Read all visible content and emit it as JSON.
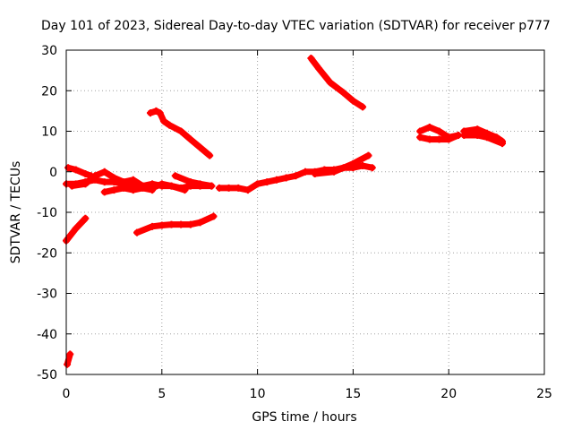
{
  "chart_data": {
    "type": "scatter",
    "title": "Day 101 of 2023, Sidereal Day-to-day VTEC variation (SDTVAR) for receiver p777",
    "xlabel": "GPS time / hours",
    "ylabel": "SDTVAR / TECUs",
    "xlim": [
      0,
      25
    ],
    "ylim": [
      -50,
      30
    ],
    "xticks": [
      "0",
      "5",
      "10",
      "15",
      "20",
      "25"
    ],
    "yticks": [
      "30",
      "20",
      "10",
      "0",
      "-10",
      "-20",
      "-30",
      "-40",
      "-50"
    ],
    "grid": true,
    "marker_color": "#ff0000",
    "series": [
      {
        "x": [
          0.0,
          0.5,
          1.0
        ],
        "y": [
          -17,
          -14,
          -11.5
        ]
      },
      {
        "x": [
          0.05,
          0.2
        ],
        "y": [
          -47.5,
          -45
        ]
      },
      {
        "x": [
          0.1,
          0.5,
          1.0,
          1.3
        ],
        "y": [
          1,
          0.5,
          -0.5,
          -1
        ]
      },
      {
        "x": [
          0.0,
          0.5,
          1.0,
          1.5,
          2.0,
          2.5,
          3.0,
          3.5,
          4.0,
          4.5,
          5.0,
          5.5,
          6.0,
          6.5,
          7.0,
          7.6
        ],
        "y": [
          -3,
          -3,
          -2.5,
          -2,
          -2.5,
          -2.5,
          -3,
          -3,
          -3.5,
          -3,
          -3.5,
          -3.5,
          -4,
          -3.5,
          -3.5,
          -3.5
        ]
      },
      {
        "x": [
          0.3,
          1.0,
          1.5,
          2.0,
          2.5,
          3.0,
          3.5,
          4.0,
          4.5,
          5.0,
          5.5,
          6.2
        ],
        "y": [
          -3.5,
          -3,
          -1,
          0,
          -1.5,
          -2.5,
          -2,
          -3.5,
          -4,
          -3,
          -3.5,
          -4.5
        ]
      },
      {
        "x": [
          2.0,
          2.5,
          3.0,
          3.5,
          4.0,
          4.5
        ],
        "y": [
          -5,
          -4.5,
          -4,
          -4.5,
          -4,
          -4.5
        ]
      },
      {
        "x": [
          5.7,
          6.5,
          7.0,
          7.6
        ],
        "y": [
          -1,
          -2.5,
          -3,
          -3.5
        ]
      },
      {
        "x": [
          3.7,
          4.5,
          5.0,
          5.5,
          6.0,
          6.5,
          7.0,
          7.7
        ],
        "y": [
          -15,
          -13.5,
          -13.2,
          -13,
          -13,
          -13,
          -12.5,
          -11
        ]
      },
      {
        "x": [
          4.4,
          4.7,
          4.9,
          5.1,
          5.4,
          6.0,
          6.5,
          7.0,
          7.5
        ],
        "y": [
          14.5,
          15,
          14.5,
          12.5,
          11.5,
          10,
          8,
          6,
          4
        ]
      },
      {
        "x": [
          8.0,
          8.5,
          9.0,
          9.5,
          10.0,
          10.5,
          11.0,
          11.5,
          12.0,
          12.5,
          13.0,
          13.5,
          14.0,
          14.5,
          15.0,
          15.5,
          16.0
        ],
        "y": [
          -4,
          -4,
          -4,
          -4.5,
          -3,
          -2.5,
          -2,
          -1.5,
          -1,
          0,
          0,
          0.5,
          0.5,
          1,
          1,
          1.5,
          1
        ]
      },
      {
        "x": [
          13.0,
          14.0,
          15.0,
          15.8
        ],
        "y": [
          -0.5,
          0,
          2,
          4
        ]
      },
      {
        "x": [
          12.8,
          13.2,
          13.8,
          14.5,
          15.0,
          15.5
        ],
        "y": [
          28,
          25.5,
          22,
          19.5,
          17.5,
          16
        ]
      },
      {
        "x": [
          18.5,
          19.0,
          19.5,
          20.0,
          20.5
        ],
        "y": [
          10,
          11,
          10,
          8.5,
          9
        ]
      },
      {
        "x": [
          18.5,
          19.0,
          19.5,
          20.0,
          20.5
        ],
        "y": [
          8.5,
          8,
          8,
          8,
          9
        ]
      },
      {
        "x": [
          20.8,
          21.5,
          22.0,
          22.5,
          22.8
        ],
        "y": [
          10,
          10.5,
          9.5,
          8.5,
          7.5
        ]
      },
      {
        "x": [
          20.8,
          21.5,
          22.0,
          22.8
        ],
        "y": [
          9,
          9,
          8.5,
          7
        ]
      }
    ]
  }
}
